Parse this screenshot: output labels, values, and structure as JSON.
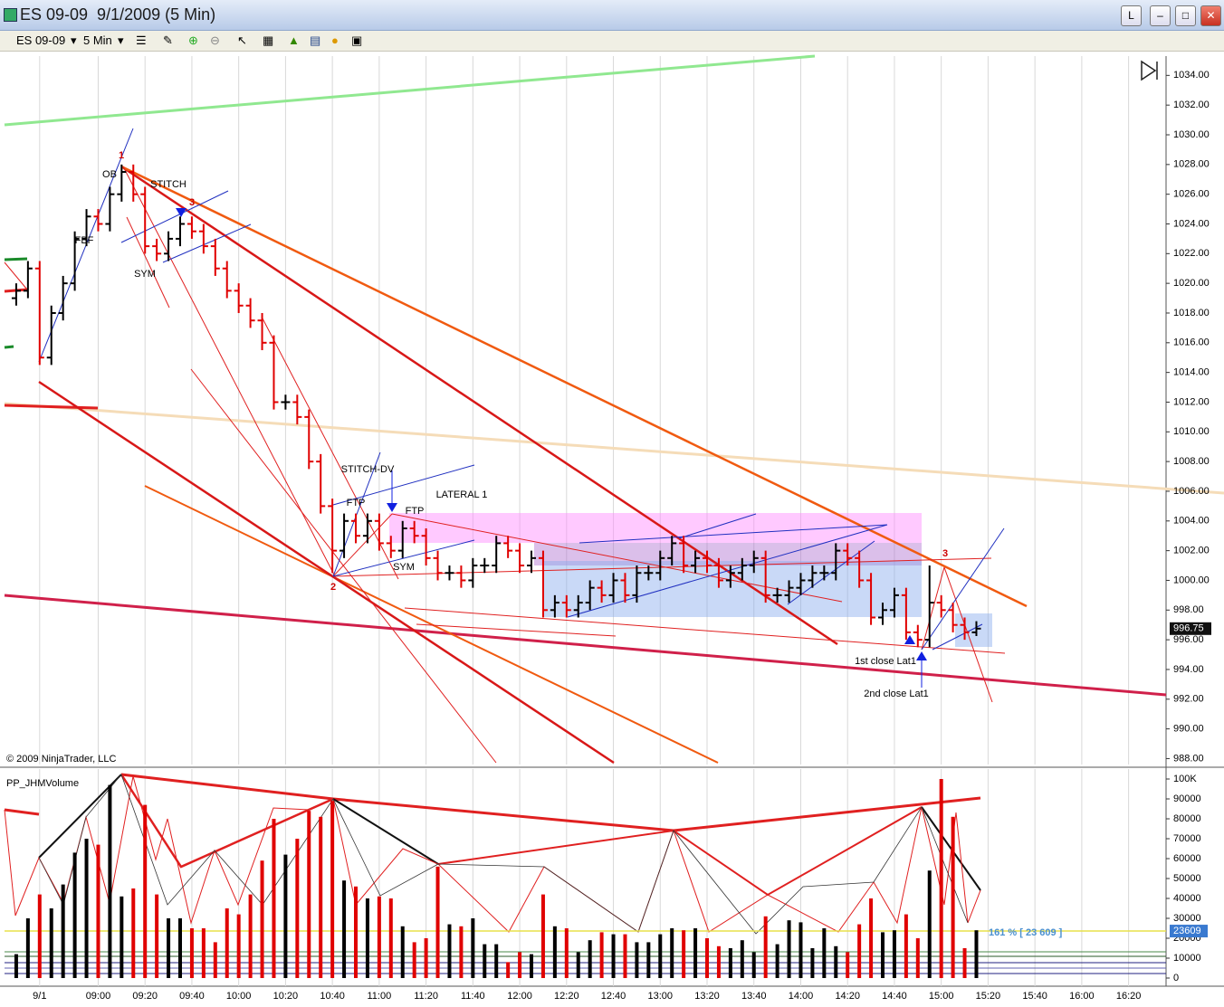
{
  "window": {
    "title": "ES 09-09  9/1/2009 (5 Min)",
    "buttons": [
      "L"
    ]
  },
  "toolbar": {
    "instrument": "ES 09-09",
    "interval": "5 Min"
  },
  "chart_data": [
    {
      "type": "ohlc",
      "x": [
        505,
        510,
        515,
        520,
        525,
        530,
        535,
        540,
        545,
        550,
        555,
        560,
        565,
        570,
        575,
        580,
        585,
        590,
        595,
        600,
        605,
        610,
        615,
        620,
        625,
        630,
        635,
        640,
        645,
        650,
        655,
        660,
        665,
        670,
        675,
        680,
        685,
        690,
        695,
        700,
        705,
        710,
        715,
        720,
        725,
        730,
        735,
        740,
        745,
        750,
        755,
        760,
        765,
        770,
        775,
        780,
        785,
        790,
        795,
        800,
        805,
        810,
        815,
        820,
        825,
        830,
        835,
        840,
        845,
        850,
        855,
        860,
        865,
        870,
        875,
        880,
        885,
        890,
        895,
        900,
        905,
        910,
        915
      ],
      "open": [
        1019,
        1019.5,
        1021,
        1015,
        1018,
        1020,
        1023,
        1024.5,
        1024,
        1026,
        1027.5,
        1026,
        1022.5,
        1022,
        1023,
        1024,
        1023.5,
        1022.5,
        1021,
        1019.5,
        1018.5,
        1017.5,
        1016,
        1012,
        1012,
        1011,
        1008,
        1005,
        1002,
        1004,
        1003,
        1004,
        1002.5,
        1002,
        1003.5,
        1003,
        1001.5,
        1000.5,
        1000.5,
        1000,
        1001,
        1001,
        1002.5,
        1002,
        1001,
        1001.5,
        998,
        998.5,
        998,
        998.5,
        999.5,
        999,
        1000,
        999,
        1000.5,
        1000.5,
        1001.5,
        1002.5,
        1001,
        1001.5,
        1001,
        1000,
        1000.5,
        1001,
        1001.5,
        999,
        999,
        999.5,
        1000,
        1000.5,
        1000.5,
        1002,
        1001.5,
        1000,
        997.5,
        998,
        999,
        996.5,
        996,
        998.5,
        998,
        997,
        996.5
      ],
      "high": [
        1020,
        1021.5,
        1021.5,
        1018.5,
        1020.5,
        1023.5,
        1025,
        1025,
        1026.5,
        1028,
        1028,
        1026.5,
        1023,
        1023.5,
        1024.5,
        1024.5,
        1024,
        1023,
        1021.5,
        1020,
        1019,
        1018,
        1016.5,
        1012.5,
        1012.5,
        1011.5,
        1008.5,
        1005.5,
        1004.5,
        1004.5,
        1004.5,
        1004.5,
        1003,
        1004,
        1004,
        1003.5,
        1002,
        1001,
        1001,
        1001.5,
        1001.5,
        1003,
        1003,
        1002.5,
        1002,
        1002,
        999,
        999,
        999,
        1000,
        1000,
        1000.5,
        1000.5,
        1001,
        1001,
        1002,
        1003,
        1003,
        1002,
        1002,
        1001.5,
        1001,
        1001.5,
        1002,
        1002,
        999.5,
        1000,
        1000.5,
        1001,
        1001,
        1002.5,
        1002.5,
        1002,
        1000.5,
        998.5,
        999.5,
        999.5,
        997,
        1001,
        999,
        998.5,
        997.5,
        997.25
      ],
      "low": [
        1018.5,
        1019,
        1014.5,
        1014.5,
        1017.5,
        1019.5,
        1022.5,
        1023.5,
        1023.5,
        1025.5,
        1025.5,
        1022,
        1021.5,
        1021.5,
        1022.5,
        1023,
        1022,
        1020.5,
        1019,
        1018,
        1017,
        1015.5,
        1011.5,
        1011.5,
        1010.5,
        1007.5,
        1004.5,
        1000.5,
        1001.5,
        1002.5,
        1002.5,
        1002,
        1001.5,
        1001.5,
        1002.5,
        1001,
        1000,
        1000,
        999.5,
        999.5,
        1000.5,
        1000.5,
        1001.5,
        1000.5,
        1000.5,
        997.5,
        997.5,
        997.5,
        997.5,
        998,
        998.5,
        998.5,
        998.5,
        998.5,
        1000,
        1000,
        1001,
        1000.5,
        1000.5,
        1000.5,
        999.5,
        999.5,
        1000,
        1000.5,
        998.5,
        998.5,
        998.5,
        999,
        999.5,
        1000,
        1000,
        1001,
        999.5,
        997,
        997,
        997.5,
        996,
        995.5,
        995.5,
        997.5,
        996.5,
        996,
        996.25
      ],
      "close": [
        1019.5,
        1021,
        1015,
        1018,
        1020,
        1023,
        1024.5,
        1024,
        1026,
        1027.5,
        1026,
        1022.5,
        1022,
        1023,
        1024,
        1023.5,
        1022.5,
        1021,
        1019.5,
        1018.5,
        1017.5,
        1016,
        1012,
        1012,
        1011,
        1008,
        1005,
        1002,
        1004,
        1003,
        1004,
        1002.5,
        1002,
        1003.5,
        1003,
        1001.5,
        1000.5,
        1000.5,
        1000,
        1001,
        1001,
        1002.5,
        1002,
        1001,
        1001.5,
        998,
        998.5,
        998,
        998.5,
        999.5,
        999,
        1000,
        999,
        1000.5,
        1000.5,
        1001.5,
        1002.5,
        1001,
        1001.5,
        1001,
        1000,
        1000.5,
        1001,
        1001.5,
        999,
        999,
        999.5,
        1000,
        1000.5,
        1000.5,
        1002,
        1001.5,
        1000,
        997.5,
        998,
        999,
        996.5,
        996,
        998.5,
        998,
        997,
        996.5,
        996.75
      ],
      "up_color": "#000000",
      "down_color": "#e00000",
      "xlim": [
        500,
        996
      ],
      "ylim": [
        987.6,
        1035.3
      ],
      "xticks": [
        {
          "value": 515,
          "label": "9/1"
        },
        {
          "value": 540,
          "label": "09:00"
        },
        {
          "value": 560,
          "label": "09:20"
        },
        {
          "value": 580,
          "label": "09:40"
        },
        {
          "value": 600,
          "label": "10:00"
        },
        {
          "value": 620,
          "label": "10:20"
        },
        {
          "value": 640,
          "label": "10:40"
        },
        {
          "value": 660,
          "label": "11:00"
        },
        {
          "value": 680,
          "label": "11:20"
        },
        {
          "value": 700,
          "label": "11:40"
        },
        {
          "value": 720,
          "label": "12:00"
        },
        {
          "value": 740,
          "label": "12:20"
        },
        {
          "value": 760,
          "label": "12:40"
        },
        {
          "value": 780,
          "label": "13:00"
        },
        {
          "value": 800,
          "label": "13:20"
        },
        {
          "value": 820,
          "label": "13:40"
        },
        {
          "value": 840,
          "label": "14:00"
        },
        {
          "value": 860,
          "label": "14:20"
        },
        {
          "value": 880,
          "label": "14:40"
        },
        {
          "value": 900,
          "label": "15:00"
        },
        {
          "value": 920,
          "label": "15:20"
        },
        {
          "value": 940,
          "label": "15:40"
        },
        {
          "value": 960,
          "label": "16:00"
        },
        {
          "value": 980,
          "label": "16:20"
        }
      ],
      "yticks": [
        {
          "value": 988,
          "label": "988.00"
        },
        {
          "value": 990,
          "label": "990.00"
        },
        {
          "value": 992,
          "label": "992.00"
        },
        {
          "value": 994,
          "label": "994.00"
        },
        {
          "value": 996,
          "label": "996.00"
        },
        {
          "value": 998,
          "label": "998.00"
        },
        {
          "value": 1000,
          "label": "1000.00"
        },
        {
          "value": 1002,
          "label": "1002.00"
        },
        {
          "value": 1004,
          "label": "1004.00"
        },
        {
          "value": 1006,
          "label": "1006.00"
        },
        {
          "value": 1008,
          "label": "1008.00"
        },
        {
          "value": 1010,
          "label": "1010.00"
        },
        {
          "value": 1012,
          "label": "1012.00"
        },
        {
          "value": 1014,
          "label": "1014.00"
        },
        {
          "value": 1016,
          "label": "1016.00"
        },
        {
          "value": 1018,
          "label": "1018.00"
        },
        {
          "value": 1020,
          "label": "1020.00"
        },
        {
          "value": 1022,
          "label": "1022.00"
        },
        {
          "value": 1024,
          "label": "1024.00"
        },
        {
          "value": 1026,
          "label": "1026.00"
        },
        {
          "value": 1028,
          "label": "1028.00"
        },
        {
          "value": 1030,
          "label": "1030.00"
        },
        {
          "value": 1032,
          "label": "1032.00"
        },
        {
          "value": 1034,
          "label": "1034.00"
        }
      ],
      "grid": "vertical",
      "annotations": [
        "1",
        "3",
        "OB",
        "STITCH",
        "FBF",
        "SYM",
        "STITCH-DV",
        "FTP",
        "FTP",
        "LATERAL 1",
        "SYM",
        "2",
        "3",
        "1st close Lat1",
        "2nd close Lat1"
      ],
      "copyright": "© 2009 NinjaTrader, LLC"
    },
    {
      "type": "bar",
      "title": "PP_JHMVolume",
      "values": [
        12000,
        30000,
        42000,
        35000,
        47000,
        63000,
        70000,
        67000,
        97000,
        41000,
        45000,
        87000,
        42000,
        30000,
        30000,
        25000,
        25000,
        18000,
        35000,
        32000,
        42000,
        59000,
        80000,
        62000,
        70000,
        84000,
        81000,
        89000,
        49000,
        46000,
        40000,
        41000,
        40000,
        26000,
        18000,
        20000,
        56000,
        27000,
        26000,
        30000,
        17000,
        17000,
        8000,
        13000,
        12000,
        42000,
        26000,
        25000,
        13000,
        19000,
        23000,
        22000,
        22000,
        18000,
        18000,
        22000,
        25000,
        24000,
        25000,
        20000,
        16000,
        15000,
        19000,
        13000,
        31000,
        17000,
        29000,
        28000,
        15000,
        25000,
        16000,
        13000,
        27000,
        40000,
        23000,
        24000,
        32000,
        20000,
        54000,
        100000,
        81000,
        15000,
        24000
      ],
      "ylim": [
        0,
        105000
      ],
      "yticks": [
        0,
        10000,
        20000,
        30000,
        40000,
        50000,
        60000,
        70000,
        80000,
        90000,
        {
          "value": 100000,
          "label": "100K"
        }
      ],
      "reference_line": 23609,
      "reference_label": "161 % [ 23 609 ]",
      "reference_color": "#e8e04a"
    }
  ]
}
